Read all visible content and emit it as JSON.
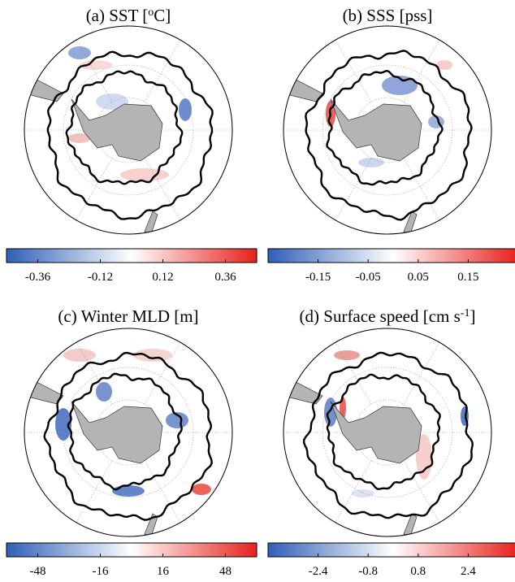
{
  "panels": [
    {
      "title": [
        {
          "text": "(a) SST ["
        },
        {
          "sup": "o"
        },
        {
          "text": "C]"
        }
      ],
      "colorbar": {
        "lim": [
          -0.48,
          0.48
        ],
        "ticks": [
          -0.36,
          -0.12,
          0.12,
          0.36
        ]
      }
    },
    {
      "title": [
        {
          "text": "(b) SSS [pss]"
        }
      ],
      "colorbar": {
        "lim": [
          -0.25,
          0.25
        ],
        "ticks": [
          -0.15,
          -0.05,
          0.05,
          0.15
        ]
      }
    },
    {
      "title": [
        {
          "text": "(c) Winter MLD [m]"
        }
      ],
      "colorbar": {
        "lim": [
          -64,
          64
        ],
        "ticks": [
          -48,
          -16,
          16,
          48
        ]
      }
    },
    {
      "title": [
        {
          "text": "(d) Surface speed [cm s"
        },
        {
          "sup": "-1"
        },
        {
          "text": "]"
        }
      ],
      "colorbar": {
        "lim": [
          -4,
          4
        ],
        "ticks": [
          -2.4,
          -0.8,
          0.8,
          2.4
        ]
      }
    }
  ]
}
